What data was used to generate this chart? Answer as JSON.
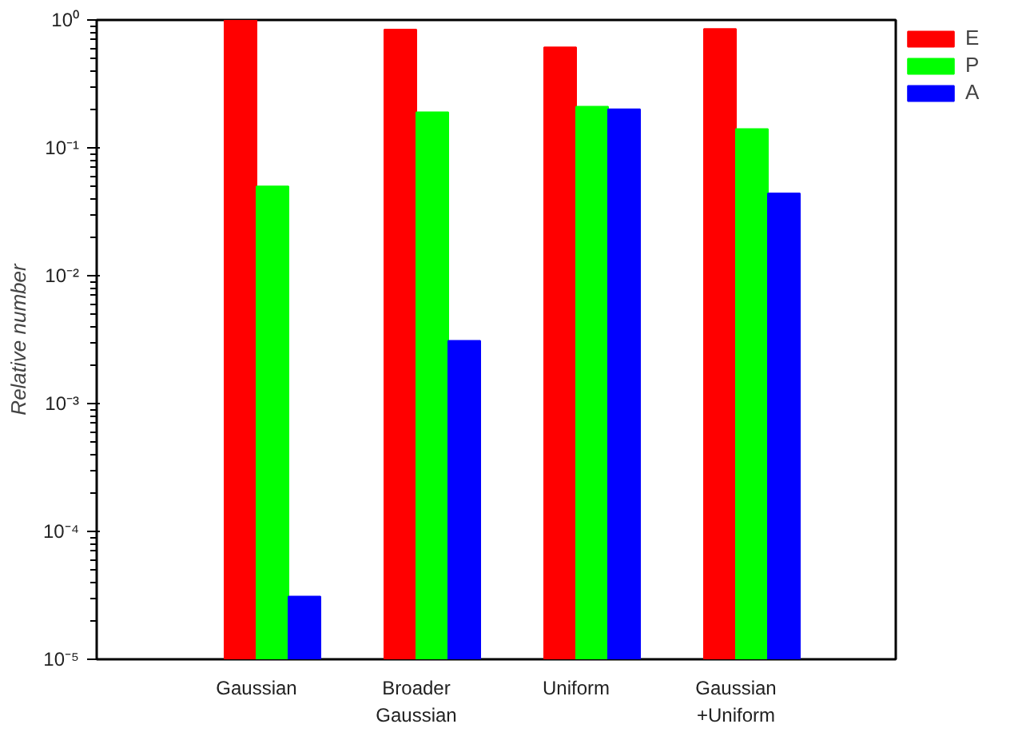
{
  "chart_data": {
    "type": "bar",
    "ylabel": "Relative number",
    "categories": [
      "Gaussian",
      "Broader\nGaussian",
      "Uniform",
      "Gaussian\n+Uniform"
    ],
    "series": [
      {
        "name": "E",
        "color": "#ff0000",
        "values": [
          1.0,
          0.84,
          0.61,
          0.85
        ]
      },
      {
        "name": "P",
        "color": "#00ff00",
        "values": [
          0.05,
          0.19,
          0.21,
          0.14
        ]
      },
      {
        "name": "A",
        "color": "#0000ff",
        "values": [
          3.1e-05,
          0.0031,
          0.2,
          0.044
        ]
      }
    ],
    "log": true,
    "ylim": [
      1e-05,
      1
    ],
    "yticks": [
      {
        "value": 1e-05,
        "label": "10⁻⁵"
      },
      {
        "value": 0.0001,
        "label": "10⁻⁴"
      },
      {
        "value": 0.001,
        "label": "10⁻³"
      },
      {
        "value": 0.01,
        "label": "10⁻²"
      },
      {
        "value": 0.1,
        "label": "10⁻¹"
      },
      {
        "value": 1,
        "label": "10⁰"
      }
    ],
    "grid": false,
    "legend": "top right"
  }
}
